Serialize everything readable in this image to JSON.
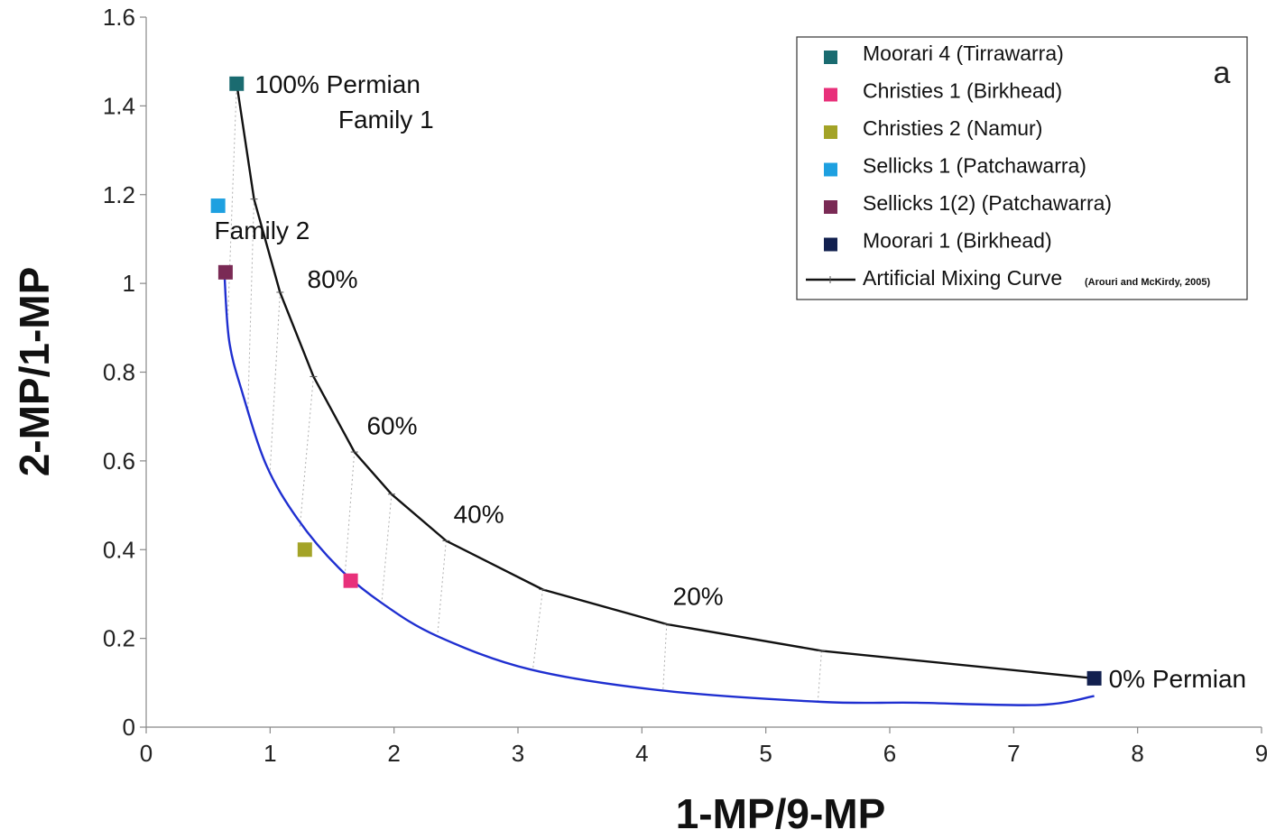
{
  "chart_data": {
    "type": "scatter",
    "panel_label": "a",
    "xlabel": "1-MP/9-MP",
    "ylabel": "2-MP/1-MP",
    "xlim": [
      0,
      9
    ],
    "ylim": [
      0,
      1.6
    ],
    "x_ticks": [
      "0",
      "1",
      "2",
      "3",
      "4",
      "5",
      "6",
      "7",
      "8",
      "9"
    ],
    "y_ticks": [
      "0",
      "0.2",
      "0.4",
      "0.6",
      "0.8",
      "1",
      "1.2",
      "1.4",
      "1.6"
    ],
    "grid": false,
    "legend_position": "top-right",
    "series": [
      {
        "name": "Moorari 4 (Tirrawarra)",
        "color": "#1a6b70",
        "points": [
          [
            0.73,
            1.45
          ]
        ]
      },
      {
        "name": "Christies 1 (Birkhead)",
        "color": "#e8307a",
        "points": [
          [
            1.65,
            0.33
          ]
        ]
      },
      {
        "name": "Christies 2 (Namur)",
        "color": "#a3a327",
        "points": [
          [
            1.28,
            0.4
          ]
        ]
      },
      {
        "name": "Sellicks 1 (Patchawarra)",
        "color": "#1ea0e0",
        "points": [
          [
            0.58,
            1.175
          ]
        ]
      },
      {
        "name": "Sellicks 1(2) (Patchawarra)",
        "color": "#7a2a55",
        "points": [
          [
            0.64,
            1.025
          ]
        ]
      },
      {
        "name": "Moorari 1 (Birkhead)",
        "color": "#12204f",
        "points": [
          [
            7.65,
            0.11
          ]
        ]
      }
    ],
    "mixing_curve": {
      "name": "Artificial Mixing Curve",
      "citation": "(Arouri and McKirdy, 2005)",
      "color": "#111111",
      "points": [
        [
          0.73,
          1.45
        ],
        [
          0.87,
          1.19
        ],
        [
          1.08,
          0.98
        ],
        [
          1.35,
          0.79
        ],
        [
          1.68,
          0.62
        ],
        [
          1.98,
          0.525
        ],
        [
          2.42,
          0.42
        ],
        [
          3.2,
          0.31
        ],
        [
          4.2,
          0.232
        ],
        [
          5.45,
          0.172
        ],
        [
          7.65,
          0.11
        ]
      ]
    },
    "family2_curve": {
      "color": "#1f2fd0",
      "points": [
        [
          0.63,
          1.03
        ],
        [
          0.67,
          0.87
        ],
        [
          0.78,
          0.75
        ],
        [
          0.97,
          0.59
        ],
        [
          1.22,
          0.47
        ],
        [
          1.55,
          0.36
        ],
        [
          1.9,
          0.28
        ],
        [
          2.35,
          0.205
        ],
        [
          3.1,
          0.13
        ],
        [
          4.15,
          0.083
        ],
        [
          5.45,
          0.057
        ],
        [
          6.2,
          0.055
        ],
        [
          7.2,
          0.05
        ],
        [
          7.65,
          0.07
        ]
      ]
    },
    "tie_lines": [
      [
        [
          0.73,
          1.45
        ],
        [
          0.66,
          0.93
        ]
      ],
      [
        [
          0.87,
          1.19
        ],
        [
          0.82,
          0.71
        ]
      ],
      [
        [
          1.08,
          0.98
        ],
        [
          1.0,
          0.58
        ]
      ],
      [
        [
          1.35,
          0.79
        ],
        [
          1.24,
          0.45
        ]
      ],
      [
        [
          1.68,
          0.62
        ],
        [
          1.6,
          0.33
        ]
      ],
      [
        [
          1.98,
          0.525
        ],
        [
          1.9,
          0.28
        ]
      ],
      [
        [
          2.42,
          0.42
        ],
        [
          2.35,
          0.205
        ]
      ],
      [
        [
          3.2,
          0.31
        ],
        [
          3.12,
          0.13
        ]
      ],
      [
        [
          4.2,
          0.232
        ],
        [
          4.17,
          0.082
        ]
      ],
      [
        [
          5.45,
          0.172
        ],
        [
          5.42,
          0.058
        ]
      ]
    ],
    "annotations": [
      {
        "text": "100% Permian",
        "x": 0.73,
        "y": 1.45,
        "color": "#111111"
      },
      {
        "text": "Family 1",
        "x": 1.55,
        "y": 1.35,
        "color": "#e03a2a"
      },
      {
        "text": "Family 2",
        "x": 0.55,
        "y": 1.1,
        "color": "#1f2fd0"
      },
      {
        "text": "80%",
        "x": 1.3,
        "y": 0.99,
        "color": "#111111"
      },
      {
        "text": "60%",
        "x": 1.78,
        "y": 0.66,
        "color": "#111111"
      },
      {
        "text": "40%",
        "x": 2.48,
        "y": 0.46,
        "color": "#111111"
      },
      {
        "text": "20%",
        "x": 4.25,
        "y": 0.275,
        "color": "#111111"
      },
      {
        "text": "0% Permian",
        "x": 7.65,
        "y": 0.11,
        "color": "#111111"
      }
    ]
  }
}
